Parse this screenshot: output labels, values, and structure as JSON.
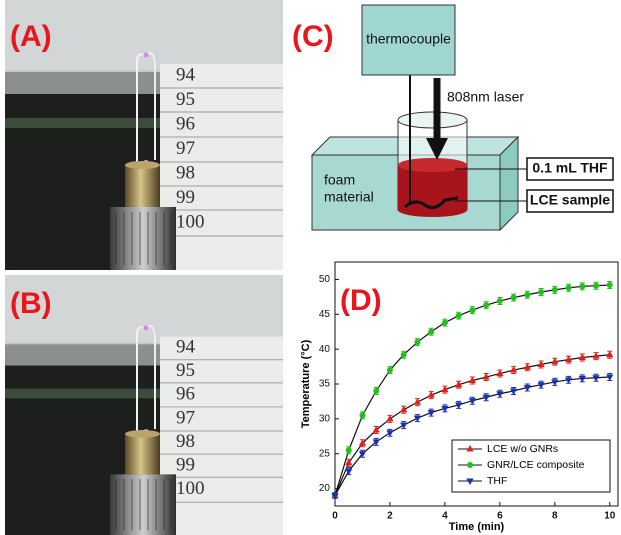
{
  "panel_a": {
    "label": "(A)",
    "ruler": [
      "94",
      "95",
      "96",
      "97",
      "98",
      "99",
      "100"
    ]
  },
  "panel_b": {
    "label": "(B)",
    "ruler": [
      "94",
      "95",
      "96",
      "97",
      "98",
      "99",
      "100"
    ]
  },
  "panel_c": {
    "label": "(C)",
    "thermocouple": "thermocouple",
    "laser": "808nm laser",
    "foam": [
      "foam",
      "material"
    ],
    "liquid": "0.1 mL THF",
    "sample": "LCE sample"
  },
  "panel_d": {
    "label": "(D)"
  },
  "chart_data": {
    "type": "line",
    "xlabel": "Time (min)",
    "ylabel": "Temperature (°C)",
    "x": [
      0,
      0.5,
      1,
      1.5,
      2,
      2.5,
      3,
      3.5,
      4,
      4.5,
      5,
      5.5,
      6,
      6.5,
      7,
      7.5,
      8,
      8.5,
      9,
      9.5,
      10
    ],
    "xlim": [
      0,
      10.3
    ],
    "xticks": [
      0,
      2,
      4,
      6,
      8,
      10
    ],
    "ylim": [
      17.5,
      52.5
    ],
    "yticks": [
      20,
      25,
      30,
      35,
      40,
      45,
      50
    ],
    "legend": "lower right",
    "series": [
      {
        "name": "LCE w/o GNRs",
        "color": "#e0201b",
        "marker": "triangle-up",
        "values": [
          19,
          23.7,
          26.5,
          28.4,
          30,
          31.3,
          32.4,
          33.4,
          34.2,
          34.9,
          35.5,
          36,
          36.5,
          37,
          37.4,
          37.8,
          38.2,
          38.5,
          38.8,
          39,
          39.2
        ],
        "errors": [
          0.4,
          0.5,
          0.5,
          0.5,
          0.5,
          0.5,
          0.5,
          0.5,
          0.5,
          0.5,
          0.5,
          0.5,
          0.5,
          0.5,
          0.5,
          0.5,
          0.5,
          0.5,
          0.5,
          0.5,
          0.5
        ]
      },
      {
        "name": "GNR/LCE composite",
        "color": "#22c01e",
        "marker": "circle",
        "values": [
          19,
          25.5,
          30.5,
          34,
          37,
          39.2,
          41,
          42.5,
          43.8,
          44.8,
          45.6,
          46.3,
          46.9,
          47.4,
          47.8,
          48.2,
          48.5,
          48.8,
          49,
          49.1,
          49.2
        ],
        "errors": [
          0.4,
          0.5,
          0.5,
          0.5,
          0.5,
          0.5,
          0.5,
          0.5,
          0.5,
          0.5,
          0.5,
          0.5,
          0.5,
          0.5,
          0.5,
          0.5,
          0.5,
          0.5,
          0.5,
          0.5,
          0.5
        ]
      },
      {
        "name": "THF",
        "color": "#1c2fb0",
        "marker": "triangle-down",
        "values": [
          19,
          22.5,
          25,
          26.7,
          28,
          29.1,
          30.1,
          30.9,
          31.5,
          32,
          32.6,
          33.1,
          33.6,
          34,
          34.5,
          34.9,
          35.3,
          35.6,
          35.8,
          35.9,
          36
        ],
        "errors": [
          0.4,
          0.5,
          0.5,
          0.5,
          0.5,
          0.5,
          0.5,
          0.5,
          0.5,
          0.5,
          0.5,
          0.5,
          0.5,
          0.5,
          0.5,
          0.5,
          0.5,
          0.5,
          0.5,
          0.5,
          0.5
        ]
      }
    ]
  }
}
